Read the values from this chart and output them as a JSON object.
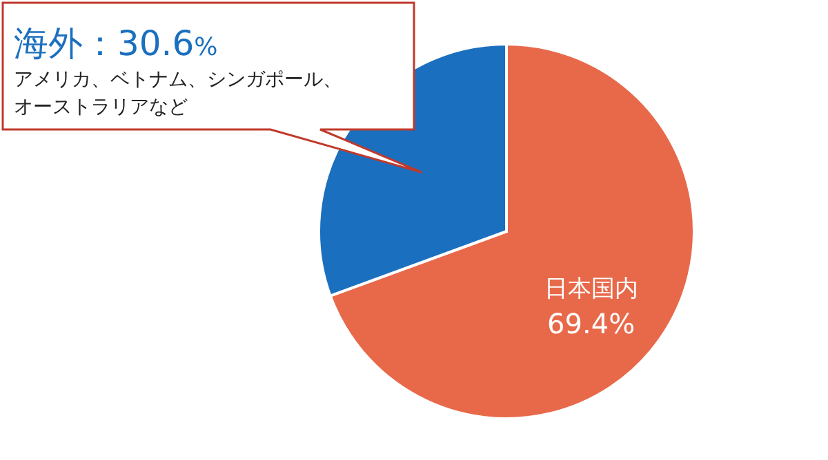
{
  "chart_data": {
    "type": "pie",
    "categories": [
      "日本国内",
      "海外"
    ],
    "values": [
      69.4,
      30.6
    ],
    "colors": [
      "#e8694a",
      "#1b6fbf"
    ],
    "value_labels": [
      "69.4%",
      "30.6%"
    ],
    "annotations": [
      "アメリカ、ベトナム、シンガポール、オーストラリアなど"
    ]
  }
}
